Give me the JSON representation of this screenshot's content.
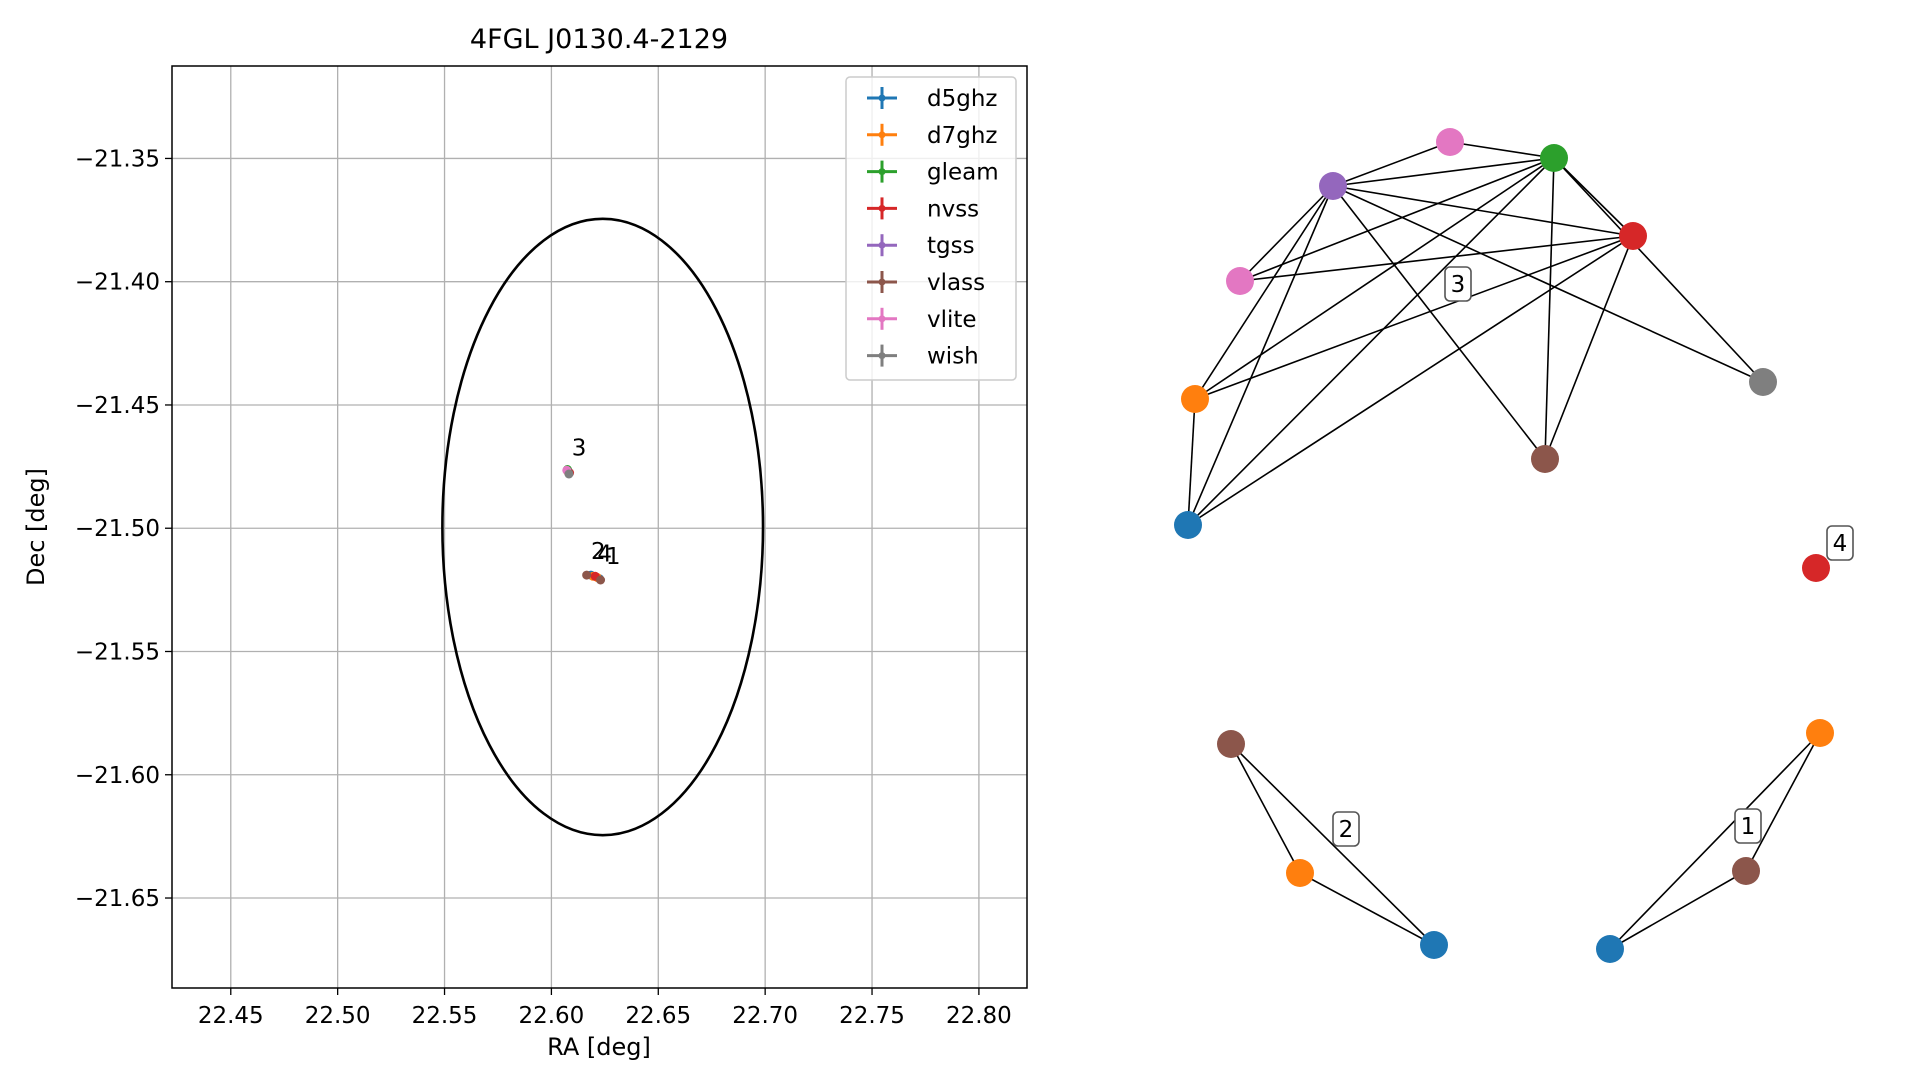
{
  "chart_data": [
    {
      "type": "scatter",
      "title": "4FGL J0130.4-2129",
      "xlabel": "RA [deg]",
      "ylabel": "Dec [deg]",
      "xlim": [
        22.4225,
        22.8225
      ],
      "ylim": [
        -21.6865,
        -21.3125
      ],
      "xticks": [
        22.45,
        22.5,
        22.55,
        22.6,
        22.65,
        22.7,
        22.75,
        22.8
      ],
      "yticks": [
        -21.35,
        -21.4,
        -21.45,
        -21.5,
        -21.55,
        -21.6,
        -21.65
      ],
      "xtick_labels": [
        "22.45",
        "22.50",
        "22.55",
        "22.60",
        "22.65",
        "22.70",
        "22.75",
        "22.80"
      ],
      "ytick_labels": [
        "−21.35",
        "−21.40",
        "−21.45",
        "−21.50",
        "−21.55",
        "−21.60",
        "−21.65"
      ],
      "grid": true,
      "legend_position": "top-right",
      "error_ellipse": {
        "center": [
          22.624,
          -21.4995
        ],
        "ra_range": [
          22.549,
          22.699
        ],
        "dec_range": [
          -21.6245,
          -21.3745
        ]
      },
      "series": [
        {
          "name": "d5ghz",
          "color": "#1f77b4",
          "points": [
            [
              22.6075,
              -21.4765
            ],
            [
              22.6185,
              -21.519
            ],
            [
              22.6225,
              -21.5205
            ]
          ]
        },
        {
          "name": "d7ghz",
          "color": "#ff7f0e",
          "points": [
            [
              22.6075,
              -21.4768
            ],
            [
              22.6195,
              -21.5195
            ],
            [
              22.6215,
              -21.52
            ]
          ]
        },
        {
          "name": "gleam",
          "color": "#2ca02c",
          "points": [
            [
              22.6075,
              -21.4762
            ]
          ]
        },
        {
          "name": "nvss",
          "color": "#d62728",
          "points": [
            [
              22.6085,
              -21.4775
            ],
            [
              22.6205,
              -21.5195
            ]
          ]
        },
        {
          "name": "tgss",
          "color": "#9467bd",
          "points": [
            [
              22.6078,
              -21.477
            ]
          ]
        },
        {
          "name": "vlass",
          "color": "#8c564b",
          "points": [
            [
              22.608,
              -21.4772
            ],
            [
              22.6165,
              -21.519
            ],
            [
              22.623,
              -21.521
            ]
          ]
        },
        {
          "name": "vlite",
          "color": "#e377c2",
          "points": [
            [
              22.6072,
              -21.4765
            ]
          ]
        },
        {
          "name": "wish",
          "color": "#7f7f7f",
          "points": [
            [
              22.6082,
              -21.478
            ]
          ]
        }
      ],
      "annotations": [
        {
          "text": "3",
          "x": 22.6095,
          "y": -21.4705
        },
        {
          "text": "2",
          "x": 22.6185,
          "y": -21.5125
        },
        {
          "text": "4",
          "x": 22.6215,
          "y": -21.5135
        },
        {
          "text": "1",
          "x": 22.6255,
          "y": -21.5145
        }
      ]
    },
    {
      "type": "network",
      "node_colors": {
        "d5ghz": "#1f77b4",
        "d7ghz": "#ff7f0e",
        "gleam": "#2ca02c",
        "nvss": "#d62728",
        "tgss": "#9467bd",
        "vlass": "#8c564b",
        "vlite": "#e377c2",
        "wish": "#7f7f7f"
      },
      "groups": [
        {
          "label": "3",
          "nodes": [
            "tgss",
            "vlite",
            "gleam",
            "nvss",
            "vlite",
            "d7ghz",
            "d5ghz",
            "vlass",
            "wish"
          ]
        },
        {
          "label": "4",
          "nodes": [
            "nvss"
          ]
        },
        {
          "label": "2",
          "nodes": [
            "vlass",
            "d7ghz",
            "d5ghz"
          ]
        },
        {
          "label": "1",
          "nodes": [
            "d7ghz",
            "vlass",
            "d5ghz"
          ]
        }
      ]
    }
  ]
}
